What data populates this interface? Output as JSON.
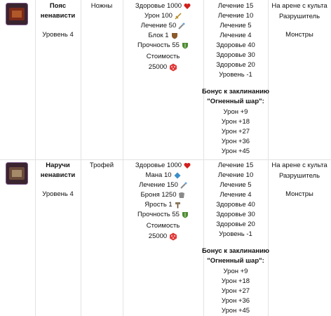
{
  "table": {
    "rows": [
      {
        "name": [
          "Пояс",
          "ненависти"
        ],
        "level": "Уровень 4",
        "type": "Ножны",
        "stats": [
          "Здоровье 1000",
          "Урон 100",
          "Лечение 50",
          "Блок 1",
          "Прочность 55"
        ],
        "cost_label": "Стоимость",
        "cost": "25000",
        "bonuses": [
          "Лечение 15",
          "Лечение 10",
          "Лечение 5",
          "Лечение 4",
          "Здоровье 40",
          "Здоровье 30",
          "Здоровье 20",
          "Уровень -1"
        ],
        "spell_title": "Бонус к заклинанию",
        "spell_name": "\"Огненный шар\":",
        "spell_bonuses": [
          "Урон +9",
          "Урон +18",
          "Урон +27",
          "Урон +36",
          "Урон +45"
        ],
        "location": [
          "На арене с культа",
          "Разрушитель"
        ],
        "source": "Монстры"
      },
      {
        "name": [
          "Наручи",
          "ненависти"
        ],
        "level": "Уровень 4",
        "type": "Трофей",
        "stats": [
          "Здоровье 1000",
          "Мана 10",
          "Лечение 150",
          "Броня 1250",
          "Ярость 1",
          "Прочность 55"
        ],
        "cost_label": "Стоимость",
        "cost": "25000",
        "bonuses": [
          "Лечение 15",
          "Лечение 10",
          "Лечение 5",
          "Лечение 4",
          "Здоровье 40",
          "Здоровье 30",
          "Здоровье 20",
          "Уровень -1"
        ],
        "spell_title": "Бонус к заклинанию",
        "spell_name": "\"Огненный шар\":",
        "spell_bonuses": [
          "Урон +9",
          "Урон +18",
          "Урон +27",
          "Урон +36",
          "Урон +45"
        ],
        "location": [
          "На арене с культа",
          "Разрушитель"
        ],
        "source": "Монстры"
      }
    ]
  }
}
